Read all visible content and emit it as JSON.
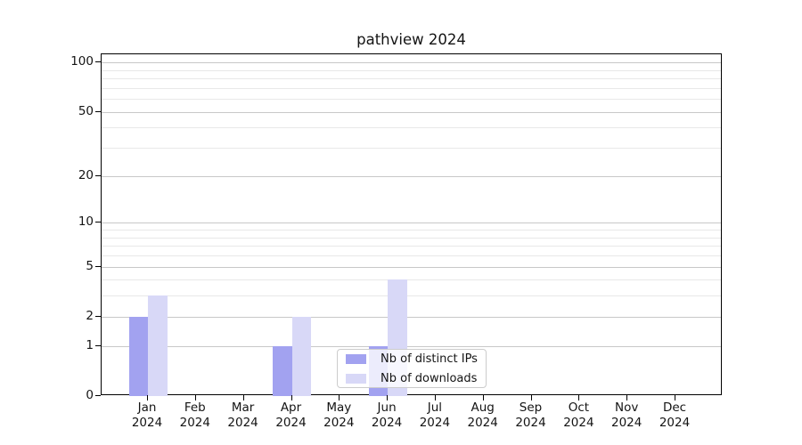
{
  "chart_data": {
    "type": "bar",
    "title": "pathview 2024",
    "categories": [
      "Jan",
      "Feb",
      "Mar",
      "Apr",
      "May",
      "Jun",
      "Jul",
      "Aug",
      "Sep",
      "Oct",
      "Nov",
      "Dec"
    ],
    "category_year_label": "2024",
    "series": [
      {
        "name": "Nb of distinct IPs",
        "color": "#a2a2f0",
        "values": [
          2,
          0,
          0,
          1,
          0,
          1,
          0,
          0,
          0,
          0,
          0,
          0
        ]
      },
      {
        "name": "Nb of downloads",
        "color": "#d8d8f7",
        "values": [
          3,
          0,
          0,
          2,
          0,
          4,
          0,
          0,
          0,
          0,
          0,
          0
        ]
      }
    ],
    "y_axis": {
      "scale": "log10(value+1)",
      "ticks": [
        0,
        1,
        2,
        5,
        10,
        20,
        50,
        100
      ],
      "minor_gridlines": [
        3,
        4,
        6,
        7,
        8,
        9,
        30,
        40,
        60,
        70,
        80,
        90
      ],
      "top_value": 112
    },
    "legend": {
      "position": "lower center",
      "entries": [
        "Nb of distinct IPs",
        "Nb of downloads"
      ]
    },
    "colors": {
      "major_grid": "#c8c8c8",
      "minor_grid": "#e8e8e8",
      "axis": "#000000",
      "text": "#141414",
      "legend_border": "#cccccc"
    }
  }
}
